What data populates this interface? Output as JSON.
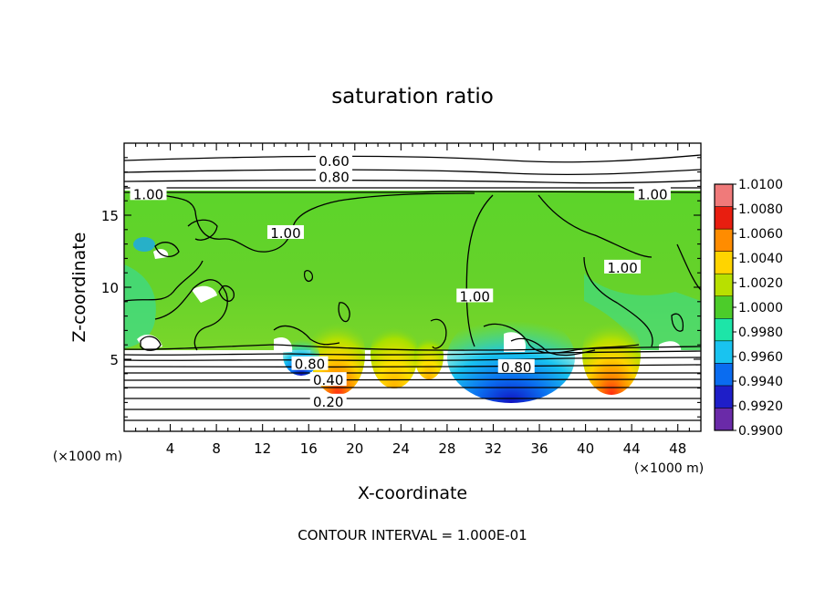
{
  "chart_data": {
    "type": "heatmap",
    "title": "saturation ratio",
    "xlabel": "X-coordinate",
    "ylabel": "Z-coordinate",
    "x_unit": "(×1000 m)",
    "y_unit": "(×1000 m)",
    "xlim": [
      0,
      50
    ],
    "ylim": [
      0,
      20
    ],
    "x_ticks": [
      4,
      8,
      12,
      16,
      20,
      24,
      28,
      32,
      36,
      40,
      44,
      48
    ],
    "y_ticks": [
      5,
      10,
      15
    ],
    "colorbar": {
      "levels": [
        "0.9900",
        "0.9920",
        "0.9940",
        "0.9960",
        "0.9980",
        "1.0000",
        "1.0020",
        "1.0040",
        "1.0060",
        "1.0080",
        "1.0100"
      ],
      "colors": [
        "#6a2aa8",
        "#1e1ec8",
        "#0a6cf0",
        "#19c3f0",
        "#1de5a8",
        "#4ccc2a",
        "#b8e000",
        "#ffd400",
        "#ff8c00",
        "#e81e10",
        "#f07a7a"
      ]
    },
    "contour_labels": [
      {
        "text": "0.60",
        "x": 18.2,
        "z": 18.8
      },
      {
        "text": "0.80",
        "x": 18.2,
        "z": 17.7
      },
      {
        "text": "1.00",
        "x": 2.1,
        "z": 16.5
      },
      {
        "text": "1.00",
        "x": 45.8,
        "z": 16.5
      },
      {
        "text": "1.00",
        "x": 14.0,
        "z": 13.8
      },
      {
        "text": "1.00",
        "x": 43.2,
        "z": 11.4
      },
      {
        "text": "1.00",
        "x": 30.4,
        "z": 9.4
      },
      {
        "text": "0.80",
        "x": 16.1,
        "z": 4.7
      },
      {
        "text": "0.80",
        "x": 34.0,
        "z": 4.5
      },
      {
        "text": "0.40",
        "x": 17.7,
        "z": 3.6
      },
      {
        "text": "0.20",
        "x": 17.7,
        "z": 2.1
      }
    ],
    "note": "CONTOUR INTERVAL = 1.000E-01"
  }
}
